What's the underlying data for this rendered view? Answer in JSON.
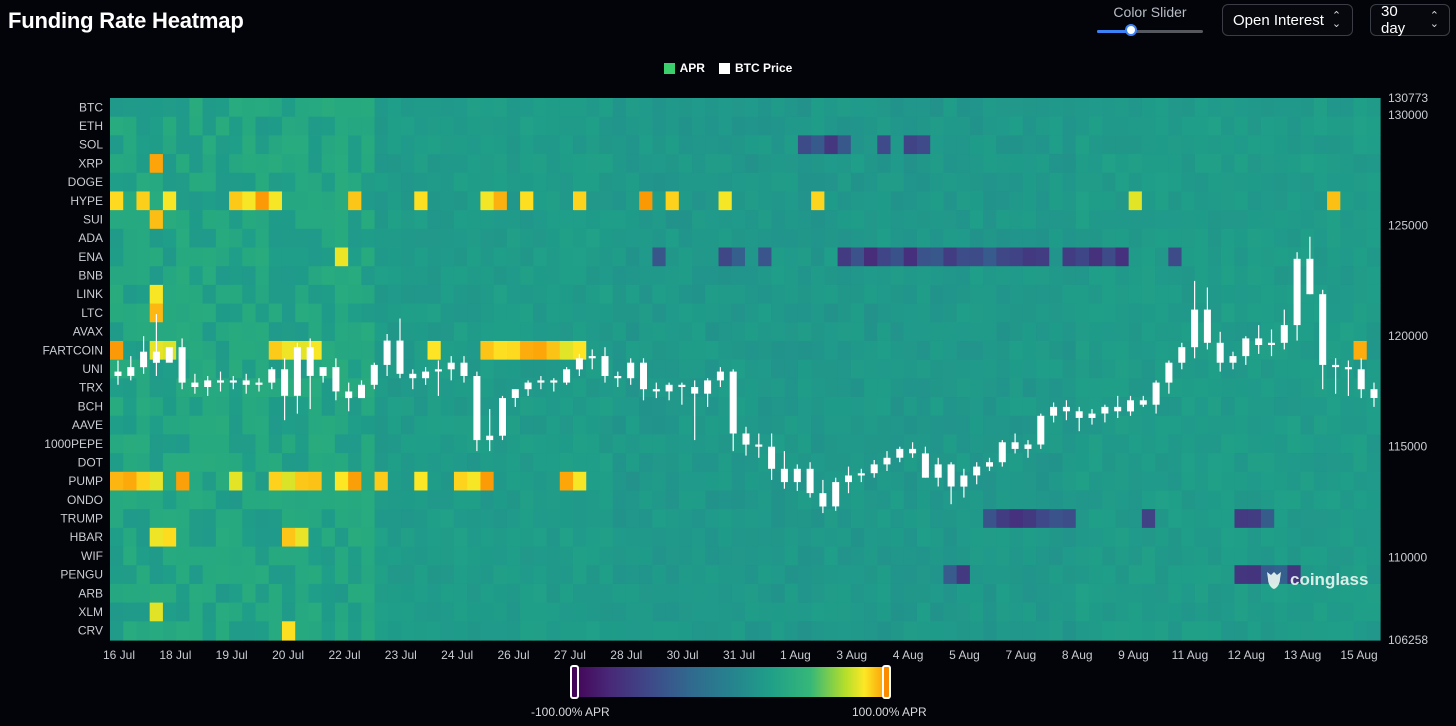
{
  "page": {
    "title": "Funding Rate Heatmap"
  },
  "controls": {
    "slider_label": "Color Slider",
    "slider_value": 0.32,
    "open_interest": "Open Interest",
    "range": "30 day"
  },
  "legend": {
    "apr": "APR",
    "btc_price": "BTC Price",
    "apr_color": "#3ccf6e",
    "price_color": "#ffffff"
  },
  "colorbar": {
    "min_label": "-100.00% APR",
    "max_label": "100.00% APR"
  },
  "watermark": "coinglass",
  "chart_data": {
    "type": "heatmap",
    "title": "Funding Rate Heatmap",
    "coins": [
      "BTC",
      "ETH",
      "SOL",
      "XRP",
      "DOGE",
      "HYPE",
      "SUI",
      "ADA",
      "ENA",
      "BNB",
      "LINK",
      "LTC",
      "AVAX",
      "FARTCOIN",
      "UNI",
      "TRX",
      "BCH",
      "AAVE",
      "1000PEPE",
      "DOT",
      "PUMP",
      "ONDO",
      "TRUMP",
      "HBAR",
      "WIF",
      "PENGU",
      "ARB",
      "XLM",
      "CRV"
    ],
    "x_labels": [
      "16 Jul",
      "18 Jul",
      "19 Jul",
      "20 Jul",
      "22 Jul",
      "23 Jul",
      "24 Jul",
      "26 Jul",
      "27 Jul",
      "28 Jul",
      "30 Jul",
      "31 Jul",
      "1 Aug",
      "3 Aug",
      "4 Aug",
      "5 Aug",
      "7 Aug",
      "8 Aug",
      "9 Aug",
      "11 Aug",
      "12 Aug",
      "13 Aug",
      "15 Aug"
    ],
    "right_axis_ticks": [
      106258,
      110000,
      115000,
      120000,
      125000,
      130000,
      130773
    ],
    "price_range": [
      106258,
      130773
    ],
    "color_scale": {
      "min": -100,
      "max": 100,
      "unit": "% APR"
    },
    "hotspots": [
      {
        "coin": "HYPE",
        "cols": [
          0,
          2,
          4,
          9,
          10,
          11,
          12,
          18,
          23,
          28,
          29,
          31,
          35,
          40,
          42,
          46,
          53,
          77,
          92
        ]
      },
      {
        "coin": "FARTCOIN",
        "cols": [
          0,
          3,
          4,
          12,
          13,
          14,
          15,
          24,
          28,
          29,
          30,
          31,
          32,
          33,
          34,
          35,
          94
        ]
      },
      {
        "coin": "PUMP",
        "cols": [
          0,
          1,
          2,
          3,
          5,
          9,
          12,
          13,
          14,
          15,
          17,
          18,
          20,
          23,
          26,
          27,
          28,
          34,
          35
        ]
      },
      {
        "coin": "XRP",
        "cols": [
          3
        ]
      },
      {
        "coin": "SUI",
        "cols": [
          3
        ]
      },
      {
        "coin": "LINK",
        "cols": [
          3
        ]
      },
      {
        "coin": "LTC",
        "cols": [
          3
        ]
      },
      {
        "coin": "HBAR",
        "cols": [
          3,
          4,
          13,
          14
        ]
      },
      {
        "coin": "XLM",
        "cols": [
          3
        ]
      },
      {
        "coin": "CRV",
        "cols": [
          13
        ]
      },
      {
        "coin": "ENA",
        "cols": [
          17
        ]
      }
    ],
    "coldspots": [
      {
        "coin": "ENA",
        "cols": [
          41,
          46,
          47,
          49,
          55,
          56,
          57,
          58,
          59,
          60,
          61,
          62,
          63,
          64,
          65,
          66,
          67,
          68,
          69,
          70,
          72,
          73,
          74,
          75,
          76,
          80
        ]
      },
      {
        "coin": "PENGU",
        "cols": [
          63,
          64,
          85,
          86,
          87,
          88,
          89
        ]
      },
      {
        "coin": "TRUMP",
        "cols": [
          66,
          67,
          68,
          69,
          70,
          71,
          72,
          78,
          85,
          86,
          87
        ]
      },
      {
        "coin": "SOL",
        "cols": [
          52,
          53,
          54,
          55,
          58,
          60,
          61
        ]
      }
    ],
    "btc_candles": [
      [
        118400,
        118900,
        117800,
        118200
      ],
      [
        118200,
        119100,
        118000,
        118600
      ],
      [
        118600,
        120000,
        118300,
        119300
      ],
      [
        119300,
        121000,
        118200,
        118800
      ],
      [
        118800,
        119300,
        119000,
        119500
      ],
      [
        119500,
        119900,
        117600,
        117900
      ],
      [
        117900,
        118300,
        117400,
        117700
      ],
      [
        117700,
        118200,
        117300,
        118000
      ],
      [
        118000,
        118400,
        117500,
        117900
      ],
      [
        117900,
        118200,
        117600,
        118000
      ],
      [
        118000,
        118300,
        117400,
        117800
      ],
      [
        117800,
        118100,
        117500,
        117900
      ],
      [
        117900,
        118600,
        117600,
        118500
      ],
      [
        118500,
        119000,
        116200,
        117300
      ],
      [
        117300,
        119700,
        116500,
        119500
      ],
      [
        119500,
        119900,
        116700,
        118200
      ],
      [
        118200,
        118600,
        117900,
        118600
      ],
      [
        118600,
        119000,
        117100,
        117500
      ],
      [
        117500,
        117900,
        116600,
        117200
      ],
      [
        117200,
        118000,
        117400,
        117800
      ],
      [
        117800,
        118800,
        117600,
        118700
      ],
      [
        118700,
        120100,
        118200,
        119800
      ],
      [
        119800,
        120800,
        118100,
        118300
      ],
      [
        118300,
        118500,
        117600,
        118100
      ],
      [
        118100,
        118600,
        117800,
        118400
      ],
      [
        118400,
        118900,
        117300,
        118500
      ],
      [
        118500,
        119100,
        118000,
        118800
      ],
      [
        118800,
        119100,
        117900,
        118200
      ],
      [
        118200,
        118400,
        114800,
        115300
      ],
      [
        115300,
        116700,
        114800,
        115500
      ],
      [
        115500,
        117300,
        115300,
        117200
      ],
      [
        117200,
        117600,
        116800,
        117600
      ],
      [
        117600,
        118000,
        117300,
        117900
      ],
      [
        117900,
        118200,
        117600,
        118000
      ],
      [
        118000,
        118100,
        117500,
        117900
      ],
      [
        117900,
        118600,
        117800,
        118500
      ],
      [
        118500,
        119200,
        118200,
        119000
      ],
      [
        119000,
        119400,
        118500,
        119100
      ],
      [
        119100,
        119500,
        117900,
        118200
      ],
      [
        118200,
        118400,
        117700,
        118100
      ],
      [
        118100,
        119000,
        117800,
        118800
      ],
      [
        118800,
        119000,
        117100,
        117600
      ],
      [
        117600,
        117900,
        117200,
        117500
      ],
      [
        117500,
        117900,
        117100,
        117800
      ],
      [
        117800,
        117900,
        116900,
        117700
      ],
      [
        117700,
        118000,
        115300,
        117400
      ],
      [
        117400,
        118100,
        116800,
        118000
      ],
      [
        118000,
        118600,
        117700,
        118400
      ],
      [
        118400,
        118500,
        114800,
        115600
      ],
      [
        115600,
        115900,
        114600,
        115100
      ],
      [
        115100,
        115600,
        114500,
        115000
      ],
      [
        115000,
        115600,
        113500,
        114000
      ],
      [
        114000,
        114800,
        113100,
        113400
      ],
      [
        113400,
        114200,
        113000,
        114000
      ],
      [
        114000,
        114300,
        112700,
        112900
      ],
      [
        112900,
        113500,
        112000,
        112300
      ],
      [
        112300,
        113600,
        112100,
        113400
      ],
      [
        113400,
        114100,
        112900,
        113700
      ],
      [
        113700,
        114000,
        113400,
        113800
      ],
      [
        113800,
        114400,
        113600,
        114200
      ],
      [
        114200,
        114800,
        113900,
        114500
      ],
      [
        114500,
        115000,
        114300,
        114900
      ],
      [
        114900,
        115200,
        114500,
        114700
      ],
      [
        114700,
        115000,
        113600,
        113600
      ],
      [
        113600,
        114500,
        113200,
        114200
      ],
      [
        114200,
        114300,
        112400,
        113200
      ],
      [
        113200,
        114000,
        112700,
        113700
      ],
      [
        113700,
        114300,
        113300,
        114100
      ],
      [
        114100,
        114500,
        113900,
        114300
      ],
      [
        114300,
        115300,
        114100,
        115200
      ],
      [
        115200,
        115600,
        114700,
        114900
      ],
      [
        114900,
        115300,
        114500,
        115100
      ],
      [
        115100,
        116500,
        114900,
        116400
      ],
      [
        116400,
        117000,
        116100,
        116800
      ],
      [
        116800,
        117100,
        116200,
        116600
      ],
      [
        116600,
        116800,
        115700,
        116300
      ],
      [
        116300,
        116700,
        116000,
        116500
      ],
      [
        116500,
        116900,
        116100,
        116800
      ],
      [
        116800,
        117300,
        116300,
        116600
      ],
      [
        116600,
        117300,
        116400,
        117100
      ],
      [
        117100,
        117300,
        116800,
        116900
      ],
      [
        116900,
        118000,
        116500,
        117900
      ],
      [
        117900,
        118900,
        117400,
        118800
      ],
      [
        118800,
        119700,
        118500,
        119500
      ],
      [
        119500,
        122500,
        119000,
        121200
      ],
      [
        121200,
        122200,
        119400,
        119700
      ],
      [
        119700,
        120200,
        118400,
        118800
      ],
      [
        118800,
        119300,
        118500,
        119100
      ],
      [
        119100,
        120000,
        118700,
        119900
      ],
      [
        119900,
        120500,
        119200,
        119600
      ],
      [
        119600,
        120300,
        119100,
        119700
      ],
      [
        119700,
        121200,
        119400,
        120500
      ],
      [
        120500,
        123800,
        119800,
        123500
      ],
      [
        123500,
        124500,
        121900,
        121900
      ],
      [
        121900,
        122100,
        117600,
        118700
      ],
      [
        118700,
        119000,
        117400,
        118600
      ],
      [
        118600,
        118900,
        117300,
        118500
      ],
      [
        118500,
        119000,
        117200,
        117600
      ],
      [
        117600,
        117900,
        116800,
        117200
      ]
    ]
  }
}
